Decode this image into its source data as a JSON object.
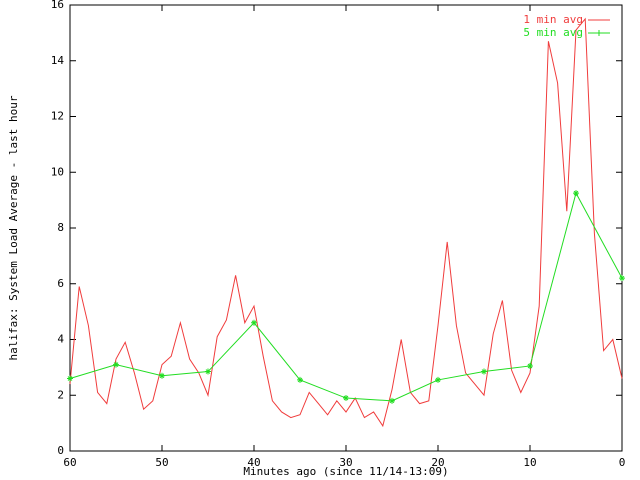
{
  "chart_data": {
    "type": "line",
    "ylabel": "halifax: System Load Average - last hour",
    "xlabel": "Minutes ago (since 11/14-13:09)",
    "xlim": [
      60,
      0
    ],
    "xticks": [
      60,
      50,
      40,
      30,
      20,
      10,
      0
    ],
    "ylim": [
      0,
      16
    ],
    "yticks": [
      0,
      2,
      4,
      6,
      8,
      10,
      12,
      14,
      16
    ],
    "legend": "top-right",
    "series": [
      {
        "name": "1 min avg",
        "color": "#f03c3c",
        "markers": false,
        "x": [
          60,
          59,
          58,
          57,
          56,
          55,
          54,
          53,
          52,
          51,
          50,
          49,
          48,
          47,
          46,
          45,
          44,
          43,
          42,
          41,
          40,
          39,
          38,
          37,
          36,
          35,
          34,
          33,
          32,
          31,
          30,
          29,
          28,
          27,
          26,
          25,
          24,
          23,
          22,
          21,
          20,
          19,
          18,
          17,
          16,
          15,
          14,
          13,
          12,
          11,
          10,
          9,
          8,
          7,
          6,
          5,
          4,
          3,
          2,
          1,
          0
        ],
        "values": [
          2.4,
          5.9,
          4.5,
          2.1,
          1.7,
          3.3,
          3.9,
          2.8,
          1.5,
          1.8,
          3.1,
          3.4,
          4.6,
          3.3,
          2.8,
          2.0,
          4.1,
          4.7,
          6.3,
          4.6,
          5.2,
          3.4,
          1.8,
          1.4,
          1.2,
          1.3,
          2.1,
          1.7,
          1.3,
          1.8,
          1.4,
          1.9,
          1.2,
          1.4,
          0.9,
          2.2,
          4.0,
          2.1,
          1.7,
          1.8,
          4.5,
          7.5,
          4.5,
          2.8,
          2.4,
          2.0,
          4.2,
          5.4,
          2.9,
          2.1,
          2.8,
          5.2,
          14.7,
          13.2,
          8.6,
          15.1,
          15.5,
          7.8,
          3.6,
          4.0,
          2.6
        ]
      },
      {
        "name": "5 min avg",
        "color": "#22dd22",
        "markers": true,
        "x": [
          60,
          55,
          50,
          45,
          40,
          35,
          30,
          25,
          20,
          15,
          10,
          5,
          0
        ],
        "values": [
          2.6,
          3.1,
          2.7,
          2.85,
          4.6,
          2.55,
          1.9,
          1.8,
          2.55,
          2.85,
          3.05,
          9.25,
          6.2
        ]
      }
    ]
  }
}
